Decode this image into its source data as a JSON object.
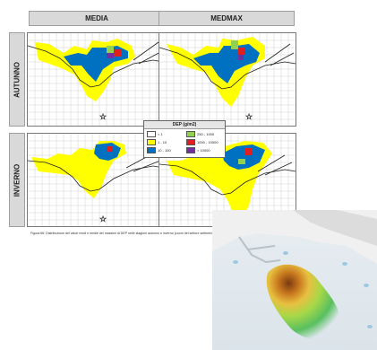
{
  "figure": {
    "columns": [
      "MEDIA",
      "MEDMAX"
    ],
    "rows": [
      "AUTUNNO",
      "INVERNO"
    ],
    "legend": {
      "title": "DEP (g/m2)",
      "items": [
        {
          "label": "< 1",
          "color": "#ffffff"
        },
        {
          "label": "250 - 1000",
          "color": "#92d050"
        },
        {
          "label": "1 - 10",
          "color": "#ffff00"
        },
        {
          "label": "1000 - 10000",
          "color": "#e02020"
        },
        {
          "label": "10 - 100",
          "color": "#0070c0"
        },
        {
          "label": "> 10000",
          "color": "#7030a0"
        }
      ]
    },
    "caption": "Figura 66: Distribuzione dei valori medi e medie dei massimi di DEP nelle stagioni autunno e inverno (zoom del settore settentrionale)"
  },
  "colors": {
    "yellow": "#ffff00",
    "blue": "#0070c0",
    "green": "#92d050",
    "red": "#e02020",
    "purple": "#7030a0",
    "header_gray": "#d9d9d9"
  },
  "icons": [
    "star-marker-icon"
  ]
}
